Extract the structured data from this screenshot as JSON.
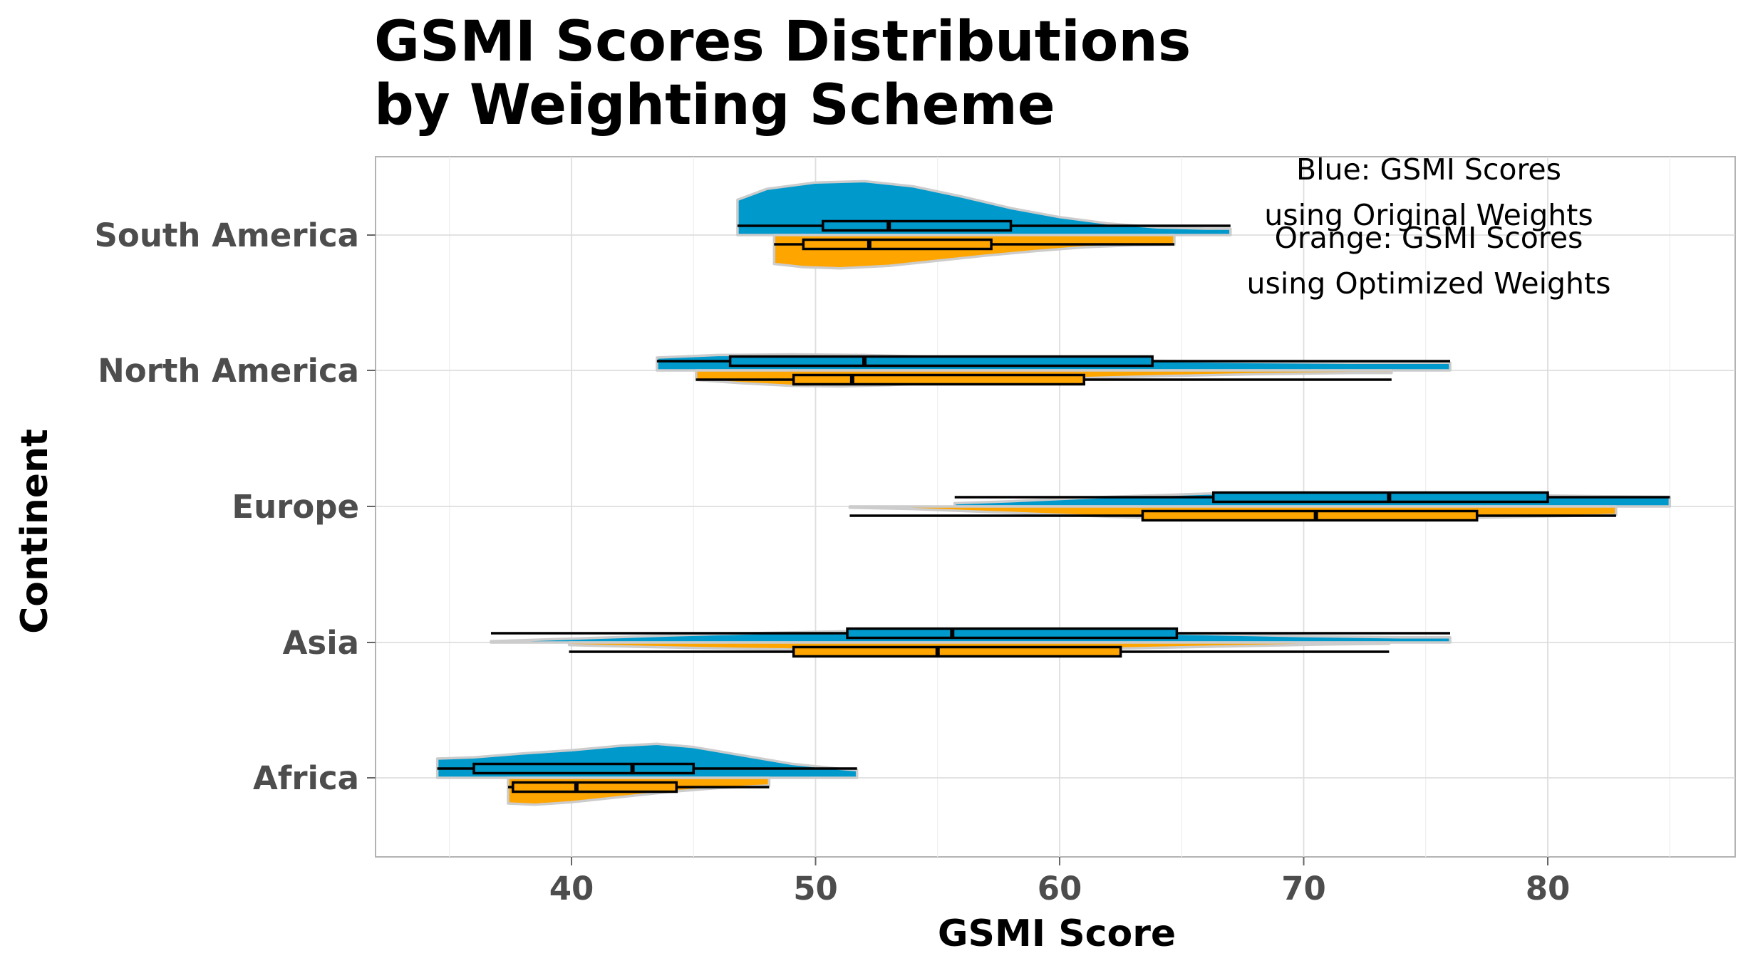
{
  "chart_data": {
    "type": "violin",
    "title_lines": [
      "GSMI Scores Distributions",
      "by Weighting Scheme"
    ],
    "xlabel": "GSMI Score",
    "ylabel": "Continent",
    "xlim": [
      32,
      88
    ],
    "x_ticks": [
      40,
      50,
      60,
      70,
      80
    ],
    "grid": true,
    "categories": [
      "South America",
      "North America",
      "Europe",
      "Asia",
      "Africa"
    ],
    "colors": {
      "original": "#0099cc",
      "optimized": "#ffa500",
      "outline": "#cccccc"
    },
    "annotations": [
      {
        "lines": [
          "Blue: GSMI Scores",
          "using Original Weights"
        ]
      },
      {
        "lines": [
          "Orange: GSMI Scores",
          "using Optimized Weights"
        ]
      }
    ],
    "series": [
      {
        "name": "Original Weights",
        "color": "#0099cc",
        "side": "upper",
        "groups": [
          {
            "category": "South America",
            "min": 46.8,
            "q1": 50.3,
            "median": 53.0,
            "q3": 58.0,
            "max": 67.0,
            "density": [
              [
                46.8,
                0.55
              ],
              [
                48,
                0.72
              ],
              [
                50,
                0.82
              ],
              [
                52,
                0.84
              ],
              [
                54,
                0.76
              ],
              [
                56,
                0.6
              ],
              [
                58,
                0.42
              ],
              [
                60,
                0.28
              ],
              [
                62,
                0.18
              ],
              [
                64,
                0.12
              ],
              [
                66,
                0.1
              ],
              [
                67,
                0.1
              ]
            ]
          },
          {
            "category": "North America",
            "min": 43.5,
            "q1": 46.5,
            "median": 52.0,
            "q3": 63.8,
            "max": 76.0,
            "density": [
              [
                43.5,
                0.2
              ],
              [
                46,
                0.24
              ],
              [
                49,
                0.25
              ],
              [
                52,
                0.24
              ],
              [
                56,
                0.2
              ],
              [
                60,
                0.17
              ],
              [
                64,
                0.15
              ],
              [
                68,
                0.13
              ],
              [
                72,
                0.12
              ],
              [
                76,
                0.12
              ]
            ]
          },
          {
            "category": "Europe",
            "min": 55.7,
            "q1": 66.3,
            "median": 73.5,
            "q3": 80.0,
            "max": 85.0,
            "density": [
              [
                55.7,
                0.05
              ],
              [
                58,
                0.08
              ],
              [
                62,
                0.15
              ],
              [
                66,
                0.2
              ],
              [
                70,
                0.22
              ],
              [
                74,
                0.2
              ],
              [
                78,
                0.18
              ],
              [
                82,
                0.16
              ],
              [
                85,
                0.15
              ]
            ]
          },
          {
            "category": "Asia",
            "min": 36.7,
            "q1": 51.3,
            "median": 55.6,
            "q3": 64.8,
            "max": 76.0,
            "density": [
              [
                36.7,
                0.02
              ],
              [
                40,
                0.06
              ],
              [
                44,
                0.11
              ],
              [
                48,
                0.15
              ],
              [
                52,
                0.18
              ],
              [
                55,
                0.2
              ],
              [
                58,
                0.19
              ],
              [
                62,
                0.16
              ],
              [
                66,
                0.13
              ],
              [
                70,
                0.1
              ],
              [
                74,
                0.08
              ],
              [
                76,
                0.08
              ]
            ]
          },
          {
            "category": "Africa",
            "min": 34.5,
            "q1": 36.0,
            "median": 42.5,
            "q3": 45.0,
            "max": 51.7,
            "density": [
              [
                34.5,
                0.3
              ],
              [
                36,
                0.32
              ],
              [
                38,
                0.38
              ],
              [
                40,
                0.43
              ],
              [
                42,
                0.5
              ],
              [
                43.5,
                0.53
              ],
              [
                45,
                0.48
              ],
              [
                47,
                0.35
              ],
              [
                49,
                0.22
              ],
              [
                51,
                0.14
              ],
              [
                51.7,
                0.12
              ]
            ]
          }
        ]
      },
      {
        "name": "Optimized Weights",
        "color": "#ffa500",
        "side": "lower",
        "groups": [
          {
            "category": "South America",
            "min": 48.3,
            "q1": 49.5,
            "median": 52.2,
            "q3": 57.2,
            "max": 64.7,
            "density": [
              [
                48.3,
                0.45
              ],
              [
                49.5,
                0.5
              ],
              [
                51,
                0.52
              ],
              [
                53,
                0.48
              ],
              [
                55,
                0.4
              ],
              [
                57,
                0.32
              ],
              [
                59,
                0.25
              ],
              [
                61,
                0.19
              ],
              [
                63,
                0.16
              ],
              [
                64.7,
                0.15
              ]
            ]
          },
          {
            "category": "North America",
            "min": 45.1,
            "q1": 49.1,
            "median": 51.5,
            "q3": 61.0,
            "max": 73.6,
            "density": [
              [
                45.1,
                0.15
              ],
              [
                47,
                0.2
              ],
              [
                49,
                0.24
              ],
              [
                51,
                0.25
              ],
              [
                53,
                0.23
              ],
              [
                56,
                0.18
              ],
              [
                60,
                0.13
              ],
              [
                64,
                0.09
              ],
              [
                68,
                0.06
              ],
              [
                72,
                0.04
              ],
              [
                73.6,
                0.04
              ]
            ]
          },
          {
            "category": "Europe",
            "min": 51.4,
            "q1": 63.4,
            "median": 70.5,
            "q3": 77.1,
            "max": 82.8,
            "density": [
              [
                51.4,
                0.02
              ],
              [
                54,
                0.04
              ],
              [
                58,
                0.1
              ],
              [
                62,
                0.16
              ],
              [
                66,
                0.2
              ],
              [
                70,
                0.21
              ],
              [
                74,
                0.2
              ],
              [
                78,
                0.17
              ],
              [
                82,
                0.14
              ],
              [
                82.8,
                0.13
              ]
            ]
          },
          {
            "category": "Asia",
            "min": 39.9,
            "q1": 49.1,
            "median": 55.0,
            "q3": 62.5,
            "max": 73.5,
            "density": [
              [
                39.9,
                0.04
              ],
              [
                43,
                0.07
              ],
              [
                47,
                0.1
              ],
              [
                51,
                0.12
              ],
              [
                55,
                0.13
              ],
              [
                59,
                0.12
              ],
              [
                63,
                0.09
              ],
              [
                67,
                0.06
              ],
              [
                71,
                0.03
              ],
              [
                73.5,
                0.02
              ]
            ]
          },
          {
            "category": "Africa",
            "min": 37.4,
            "q1": 37.6,
            "median": 40.2,
            "q3": 44.3,
            "max": 48.1,
            "density": [
              [
                37.4,
                0.4
              ],
              [
                38.5,
                0.42
              ],
              [
                40,
                0.38
              ],
              [
                42,
                0.3
              ],
              [
                44,
                0.22
              ],
              [
                46,
                0.16
              ],
              [
                48.1,
                0.12
              ]
            ]
          }
        ]
      }
    ]
  }
}
